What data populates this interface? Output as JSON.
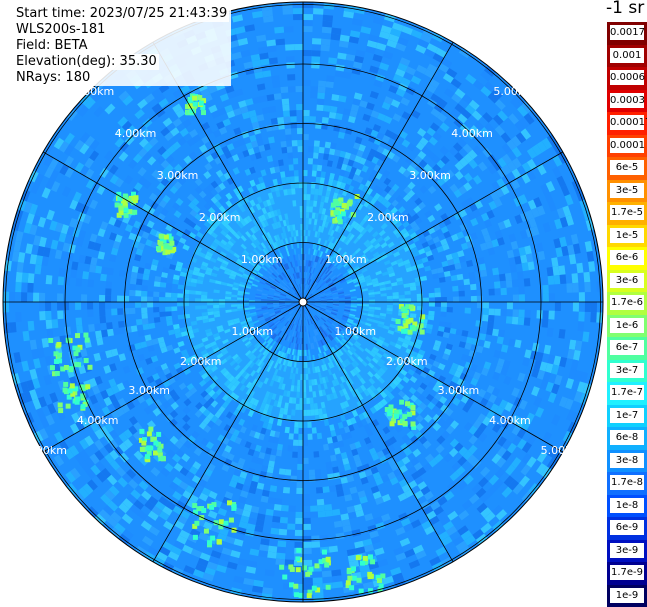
{
  "info": {
    "start_time": "Start time: 2023/07/25 21:43:39",
    "instrument": "WLS200s-181",
    "field": "Field: BETA",
    "elevation": "Elevation(deg): 35.30",
    "nrays": "NRays: 180"
  },
  "colorbar": {
    "unit": "-1 sr",
    "levels": [
      {
        "label": "0.0017",
        "color": "#800000"
      },
      {
        "label": "0.001",
        "color": "#a00000"
      },
      {
        "label": "0.0006",
        "color": "#c00000"
      },
      {
        "label": "0.0003",
        "color": "#e00000"
      },
      {
        "label": "0.00017",
        "color": "#ff2000"
      },
      {
        "label": "0.0001",
        "color": "#ff4000"
      },
      {
        "label": "6e-5",
        "color": "#ff6000"
      },
      {
        "label": "3e-5",
        "color": "#ff9000"
      },
      {
        "label": "1.7e-5",
        "color": "#ffb000"
      },
      {
        "label": "1e-5",
        "color": "#ffd800"
      },
      {
        "label": "6e-6",
        "color": "#ffff00"
      },
      {
        "label": "3e-6",
        "color": "#d8ff20"
      },
      {
        "label": "1.7e-6",
        "color": "#b0ff40"
      },
      {
        "label": "1e-6",
        "color": "#80ff70"
      },
      {
        "label": "6e-7",
        "color": "#50ffa0"
      },
      {
        "label": "3e-7",
        "color": "#30ffd0"
      },
      {
        "label": "1.7e-7",
        "color": "#20f0ff"
      },
      {
        "label": "1e-7",
        "color": "#10d0ff"
      },
      {
        "label": "6e-8",
        "color": "#10b0ff"
      },
      {
        "label": "3e-8",
        "color": "#1090ff"
      },
      {
        "label": "1.7e-8",
        "color": "#1070ff"
      },
      {
        "label": "1e-8",
        "color": "#0050ff"
      },
      {
        "label": "6e-9",
        "color": "#0030e0"
      },
      {
        "label": "3e-9",
        "color": "#0010c0"
      },
      {
        "label": "1.7e-9",
        "color": "#000090"
      },
      {
        "label": "1e-9",
        "color": "#000060"
      }
    ]
  },
  "range_rings": {
    "labels": [
      "1.00km",
      "2.00km",
      "3.00km",
      "4.00km",
      "5.00km"
    ]
  }
}
